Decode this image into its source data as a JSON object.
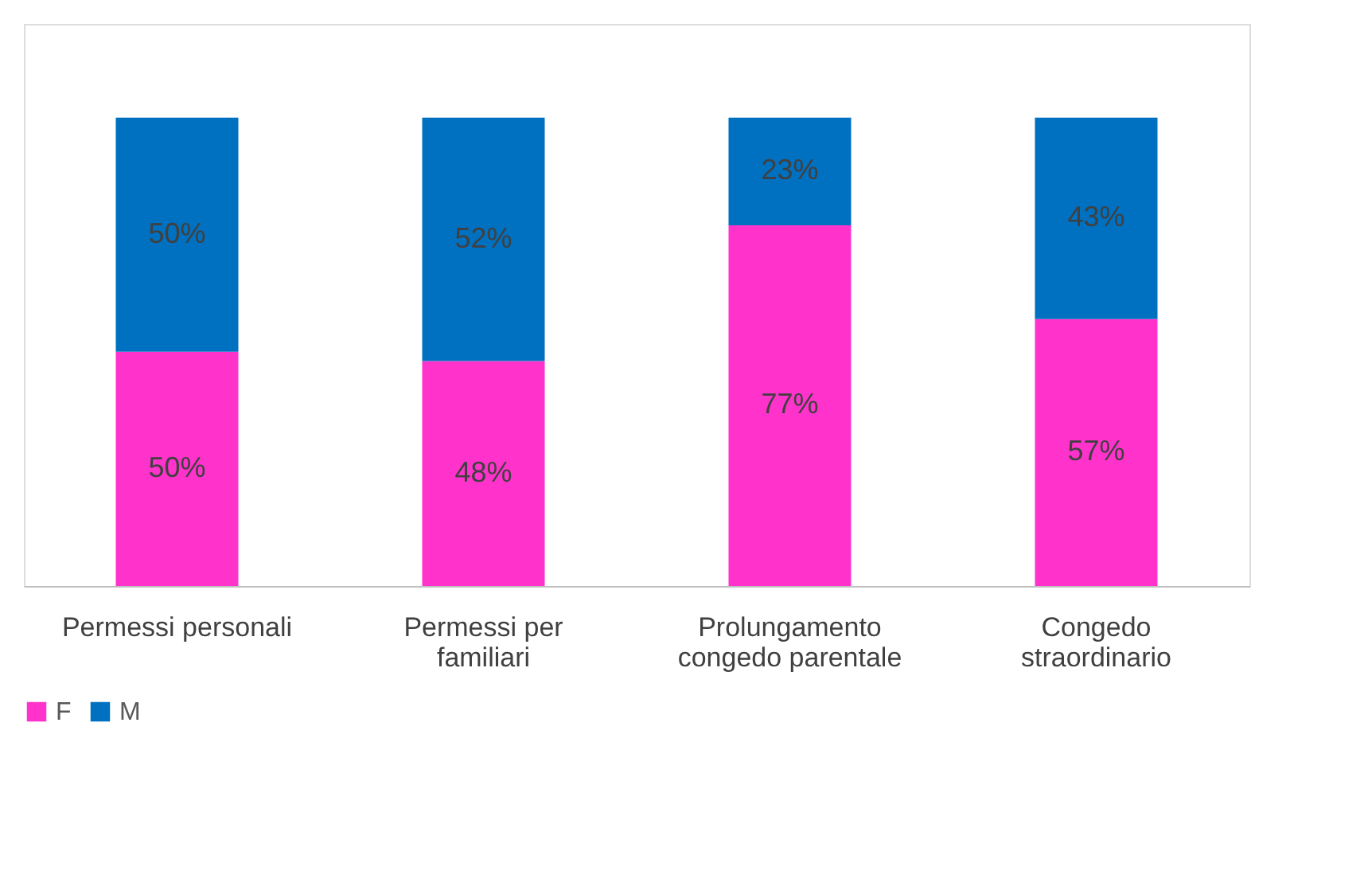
{
  "chart_data": {
    "type": "bar",
    "stacked": true,
    "categories": [
      "Permessi personali",
      "Permessi per\nfamiliari",
      "Prolungamento\ncongedo parentale",
      "Congedo\nstraordinario"
    ],
    "series": [
      {
        "name": "F",
        "color": "#ff33cc",
        "values": [
          50,
          48,
          77,
          57
        ],
        "value_labels": [
          "50%",
          "48%",
          "77%",
          "57%"
        ]
      },
      {
        "name": "M",
        "color": "#0070c0",
        "values": [
          50,
          52,
          23,
          43
        ],
        "value_labels": [
          "50%",
          "52%",
          "23%",
          "43%"
        ]
      }
    ],
    "ylim": [
      0,
      120
    ],
    "tick_labels": "x",
    "grid": false,
    "legend": "bottom"
  }
}
